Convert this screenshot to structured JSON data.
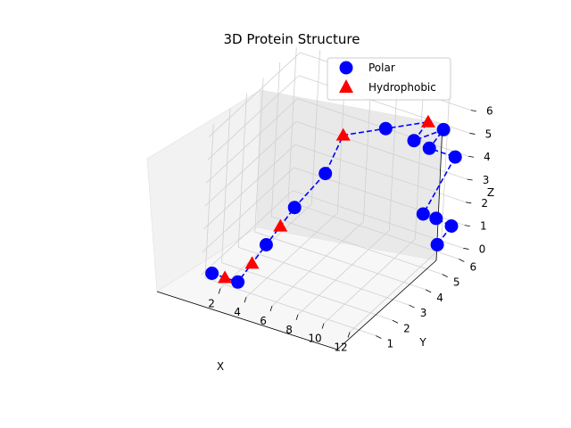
{
  "chart_data": {
    "type": "scatter",
    "title": "3D Protein Structure",
    "xlabel": "X",
    "ylabel": "Y",
    "zlabel": "Z",
    "xticks": [
      "2",
      "4",
      "6",
      "8",
      "10",
      "12"
    ],
    "yticks": [
      "1",
      "2",
      "3",
      "4",
      "5",
      "6"
    ],
    "zticks": [
      "0",
      "1",
      "2",
      "3",
      "4",
      "5",
      "6"
    ],
    "legend_position": "top-right",
    "legend": [
      {
        "name": "Polar",
        "marker": "circle",
        "color": "#0000ff"
      },
      {
        "name": "Hydrophobic",
        "marker": "triangle",
        "color": "#ff0000"
      }
    ],
    "backbone_line": {
      "color": "#0000ff",
      "style": "dashed"
    },
    "residues": [
      {
        "type": "Polar",
        "x": 1,
        "y": 1,
        "z": 0
      },
      {
        "type": "Hydrophobic",
        "x": 2,
        "y": 1,
        "z": 0
      },
      {
        "type": "Polar",
        "x": 3,
        "y": 1,
        "z": 0
      },
      {
        "type": "Hydrophobic",
        "x": 4,
        "y": 1,
        "z": 1
      },
      {
        "type": "Polar",
        "x": 5,
        "y": 1,
        "z": 2
      },
      {
        "type": "Hydrophobic",
        "x": 6,
        "y": 1,
        "z": 3
      },
      {
        "type": "Polar",
        "x": 7,
        "y": 1,
        "z": 4
      },
      {
        "type": "Polar",
        "x": 8,
        "y": 2,
        "z": 5
      },
      {
        "type": "Hydrophobic",
        "x": 8,
        "y": 3,
        "z": 6
      },
      {
        "type": "Polar",
        "x": 10,
        "y": 4,
        "z": 6
      },
      {
        "type": "Hydrophobic",
        "x": 12,
        "y": 5,
        "z": 6
      },
      {
        "type": "Polar",
        "x": 11,
        "y": 5,
        "z": 5
      },
      {
        "type": "Polar",
        "x": 12,
        "y": 6,
        "z": 5
      },
      {
        "type": "Polar",
        "x": 11,
        "y": 6,
        "z": 4
      },
      {
        "type": "Polar",
        "x": 13,
        "y": 6,
        "z": 4
      },
      {
        "type": "Polar",
        "x": 12,
        "y": 5,
        "z": 2
      },
      {
        "type": "Polar",
        "x": 13,
        "y": 5,
        "z": 2
      },
      {
        "type": "Polar",
        "x": 13,
        "y": 6,
        "z": 1
      },
      {
        "type": "Polar",
        "x": 12,
        "y": 6,
        "z": 0
      }
    ]
  }
}
